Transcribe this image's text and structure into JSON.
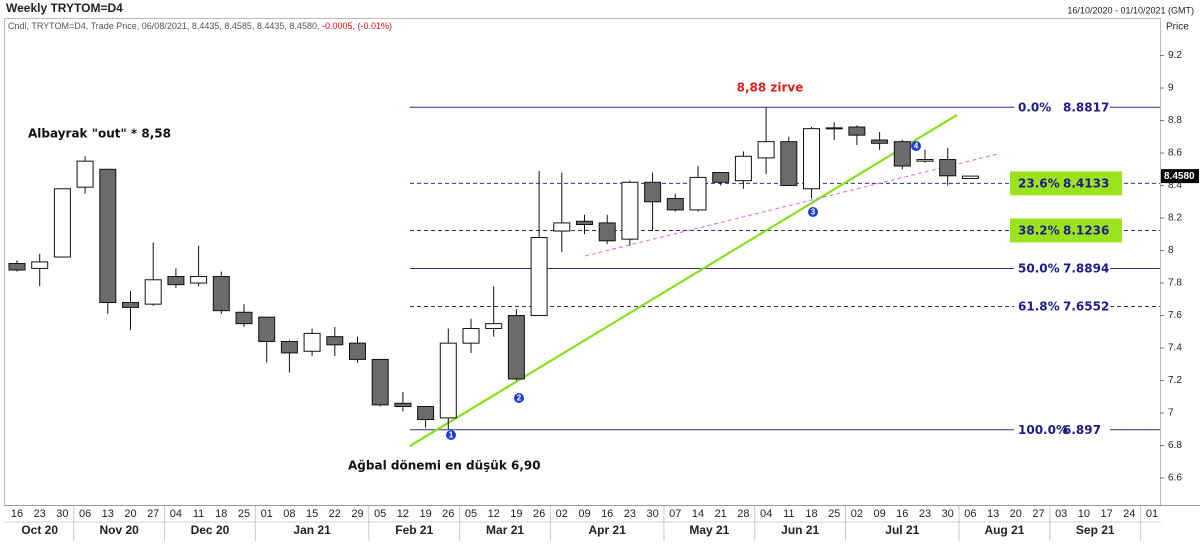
{
  "chart_data": {
    "type": "candlestick",
    "title": "Weekly TRYTOM=D4",
    "date_range": "16/10/2020 - 01/10/2021 (GMT)",
    "info_line": "Cndl, TRYTOM=D4, Trade Price, 06/08/2021, 8.4435, 8.4585, 8.4435, 8.4580,",
    "info_change": "-0.0005, (-0.01%)",
    "y_axis_label": "Price",
    "categories": [
      "16",
      "23",
      "30",
      "06",
      "13",
      "20",
      "27",
      "04",
      "11",
      "18",
      "25",
      "01",
      "08",
      "15",
      "22",
      "29",
      "05",
      "12",
      "19",
      "26",
      "05",
      "12",
      "19",
      "26",
      "02",
      "09",
      "16",
      "23",
      "30",
      "07",
      "14",
      "21",
      "28",
      "04",
      "11",
      "18",
      "25",
      "02",
      "09",
      "16",
      "23",
      "30",
      "06",
      "13",
      "20",
      "27",
      "03",
      "10",
      "17",
      "24",
      "01"
    ],
    "months": [
      "Oct 20",
      "Nov 20",
      "Dec 20",
      "Jan 21",
      "Feb 21",
      "Mar 21",
      "Apr 21",
      "May 21",
      "Jun 21",
      "Jul 21",
      "Aug 21",
      "Sep 21"
    ],
    "open": [
      7.92,
      7.89,
      7.96,
      8.39,
      8.5,
      7.68,
      7.67,
      7.84,
      7.8,
      7.84,
      7.62,
      7.59,
      7.44,
      7.38,
      7.47,
      7.43,
      7.33,
      7.06,
      7.04,
      6.97,
      7.43,
      7.52,
      7.6,
      7.6,
      8.12,
      8.18,
      8.17,
      8.07,
      8.42,
      8.32,
      8.25,
      8.48,
      8.43,
      8.57,
      8.67,
      8.38,
      8.75,
      8.76,
      8.68,
      8.67,
      8.55,
      8.56,
      8.4435,
      null,
      null,
      null,
      null,
      null,
      null,
      null,
      null
    ],
    "high": [
      7.94,
      7.98,
      8.38,
      8.58,
      8.5,
      7.75,
      8.05,
      7.89,
      8.03,
      7.87,
      7.67,
      7.59,
      7.45,
      7.52,
      7.53,
      7.47,
      7.33,
      7.13,
      7.04,
      7.52,
      7.58,
      7.78,
      7.64,
      8.49,
      8.48,
      8.22,
      8.22,
      8.43,
      8.48,
      8.35,
      8.52,
      8.48,
      8.61,
      8.88,
      8.7,
      8.76,
      8.79,
      8.77,
      8.73,
      8.68,
      8.62,
      8.63,
      8.4585,
      null,
      null,
      null,
      null,
      null,
      null,
      null,
      null
    ],
    "low": [
      7.87,
      7.78,
      7.96,
      8.35,
      7.61,
      7.51,
      7.66,
      7.77,
      7.78,
      7.61,
      7.53,
      7.31,
      7.25,
      7.35,
      7.35,
      7.31,
      7.04,
      7.01,
      6.91,
      6.9,
      7.37,
      7.47,
      7.2,
      7.6,
      7.99,
      8.1,
      8.04,
      8.03,
      8.12,
      8.24,
      8.24,
      8.4,
      8.38,
      8.47,
      8.4,
      8.32,
      8.68,
      8.65,
      8.62,
      8.5,
      8.54,
      8.4,
      8.4435,
      null,
      null,
      null,
      null,
      null,
      null,
      null,
      null
    ],
    "close": [
      7.88,
      7.93,
      8.38,
      8.55,
      7.68,
      7.65,
      7.82,
      7.79,
      7.84,
      7.63,
      7.55,
      7.44,
      7.37,
      7.49,
      7.42,
      7.33,
      7.05,
      7.04,
      6.96,
      7.43,
      7.52,
      7.55,
      7.21,
      8.08,
      8.17,
      8.16,
      8.06,
      8.42,
      8.3,
      8.25,
      8.45,
      8.42,
      8.58,
      8.67,
      8.4,
      8.75,
      8.755,
      8.71,
      8.66,
      8.52,
      8.56,
      8.46,
      8.458,
      null,
      null,
      null,
      null,
      null,
      null,
      null,
      null
    ],
    "up_color": "#ffffff",
    "down_color": "#6b6b6b",
    "ylim": [
      6.434,
      9.431
    ],
    "yticks": [
      6.6,
      6.8,
      7,
      7.2,
      7.4,
      7.6,
      7.8,
      8,
      8.2,
      8.4,
      8.6,
      8.8,
      9,
      9.2
    ],
    "last_price": {
      "value": 8.458,
      "label": "8.4580"
    },
    "fib_levels": [
      {
        "label": "0.0%",
        "value": 8.8817,
        "dashed": false,
        "highlight": false
      },
      {
        "label": "23.6%",
        "value": 8.4133,
        "dashed": true,
        "highlight": true
      },
      {
        "label": "38.2%",
        "value": 8.1236,
        "dashed": true,
        "highlight": true
      },
      {
        "label": "50.0%",
        "value": 7.8894,
        "dashed": false,
        "highlight": false
      },
      {
        "label": "61.8%",
        "value": 7.6552,
        "dashed": true,
        "highlight": false
      },
      {
        "label": "100.0%",
        "value": 6.897,
        "dashed": false,
        "highlight": false
      }
    ],
    "fib_color": "#2e2e8f",
    "highlight_color": "#9be31c",
    "annotations": {
      "peak": "8,88 zirve",
      "high_note": "Albayrak \"out\" * 8,58",
      "low_note": "Ağbal dönemi en düşük 6,90"
    },
    "markers": [
      "1",
      "2",
      "3",
      "4"
    ],
    "marker_color": "#1b3fd6"
  }
}
